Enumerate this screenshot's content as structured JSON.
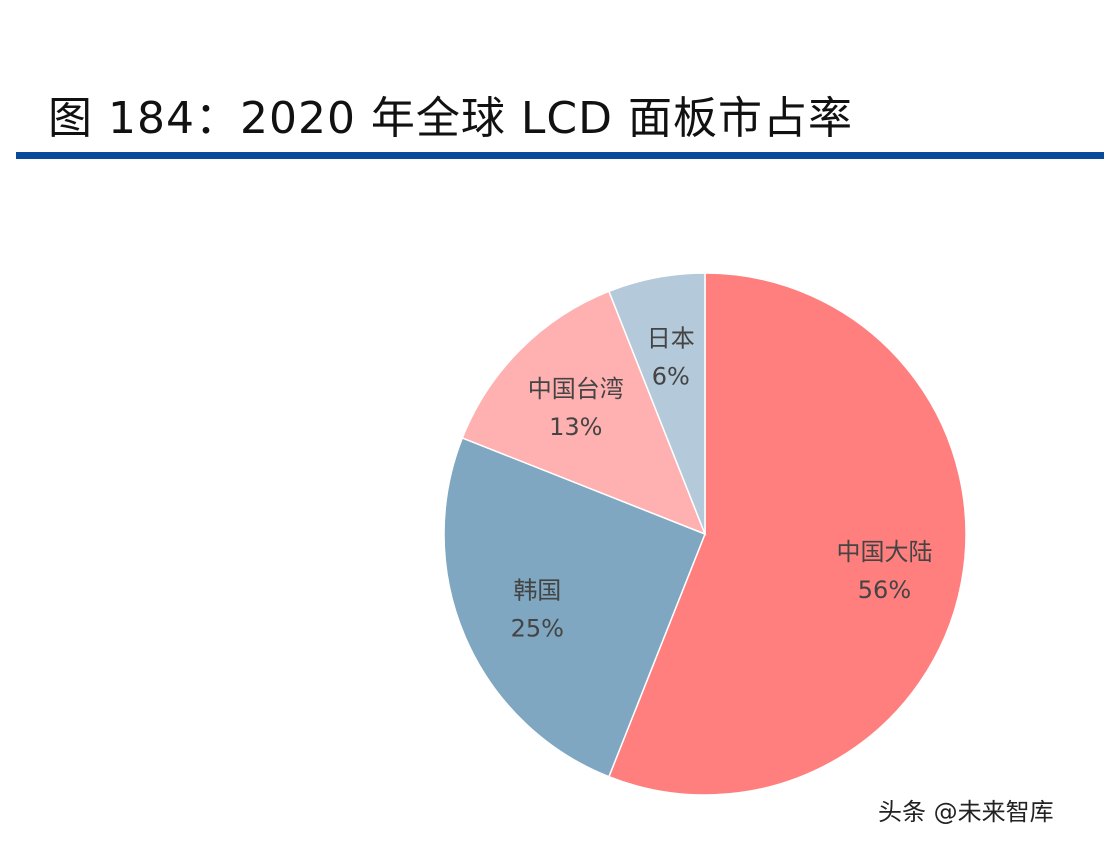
{
  "header": {
    "title": "图 184：2020 年全球 LCD 面板市占率",
    "rule_color": "#0A4A9A"
  },
  "chart_data": {
    "type": "pie",
    "title": "",
    "start": "top",
    "direction": "clockwise",
    "slices": [
      {
        "label": "中国大陆",
        "value": 56,
        "display": "56%",
        "color": "#FF7F7F"
      },
      {
        "label": "韩国",
        "value": 25,
        "display": "25%",
        "color": "#7FA7C1"
      },
      {
        "label": "中国台湾",
        "value": 13,
        "display": "13%",
        "color": "#FFB0B0"
      },
      {
        "label": "日本",
        "value": 6,
        "display": "6%",
        "color": "#B4C9DA"
      }
    ]
  },
  "watermark": "头条 @未来智库"
}
